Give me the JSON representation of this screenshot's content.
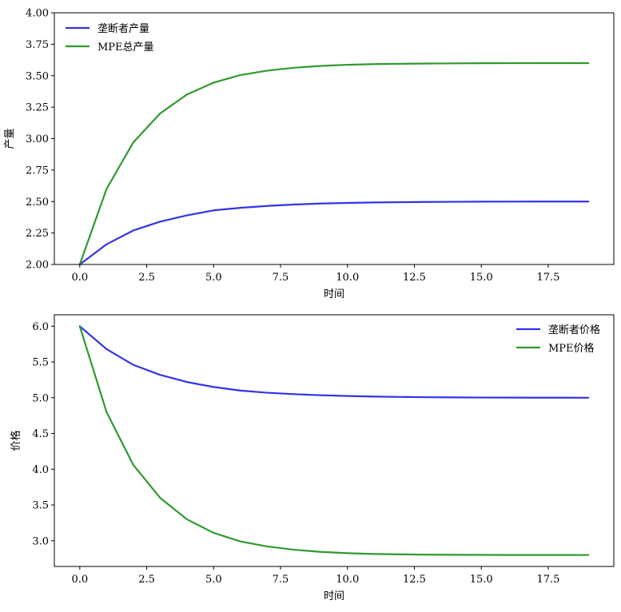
{
  "chart_data": [
    {
      "type": "line",
      "xlabel": "时间",
      "ylabel": "产量",
      "xlim": [
        -0.95,
        19.95
      ],
      "ylim": [
        2.0,
        4.0
      ],
      "xticks": [
        "0.0",
        "2.5",
        "5.0",
        "7.5",
        "10.0",
        "12.5",
        "15.0",
        "17.5"
      ],
      "yticks": [
        "2.00",
        "2.25",
        "2.50",
        "2.75",
        "3.00",
        "3.25",
        "3.50",
        "3.75",
        "4.00"
      ],
      "legend_position": "top-left",
      "x": [
        0,
        1,
        2,
        3,
        4,
        5,
        6,
        7,
        8,
        9,
        10,
        11,
        12,
        13,
        14,
        15,
        16,
        17,
        18,
        19
      ],
      "series": [
        {
          "name": "垄断者产量",
          "color": "#3333e8",
          "values": [
            2.0,
            2.16,
            2.27,
            2.34,
            2.39,
            2.43,
            2.45,
            2.465,
            2.476,
            2.484,
            2.489,
            2.493,
            2.495,
            2.497,
            2.498,
            2.499,
            2.4995,
            2.4998,
            2.4999,
            2.5
          ]
        },
        {
          "name": "MPE总产量",
          "color": "#2e9a2e",
          "values": [
            2.0,
            2.6,
            2.97,
            3.2,
            3.35,
            3.445,
            3.505,
            3.54,
            3.563,
            3.578,
            3.587,
            3.592,
            3.595,
            3.597,
            3.598,
            3.599,
            3.5995,
            3.5998,
            3.5999,
            3.6
          ]
        }
      ]
    },
    {
      "type": "line",
      "xlabel": "时间",
      "ylabel": "价格",
      "xlim": [
        -0.95,
        19.95
      ],
      "ylim": [
        2.64,
        6.16
      ],
      "xticks": [
        "0.0",
        "2.5",
        "5.0",
        "7.5",
        "10.0",
        "12.5",
        "15.0",
        "17.5"
      ],
      "yticks": [
        "3.0",
        "3.5",
        "4.0",
        "4.5",
        "5.0",
        "5.5",
        "6.0"
      ],
      "legend_position": "top-right",
      "x": [
        0,
        1,
        2,
        3,
        4,
        5,
        6,
        7,
        8,
        9,
        10,
        11,
        12,
        13,
        14,
        15,
        16,
        17,
        18,
        19
      ],
      "series": [
        {
          "name": "垄断者价格",
          "color": "#3333e8",
          "values": [
            6.0,
            5.68,
            5.46,
            5.32,
            5.22,
            5.15,
            5.1,
            5.07,
            5.05,
            5.035,
            5.024,
            5.016,
            5.011,
            5.007,
            5.005,
            5.003,
            5.002,
            5.001,
            5.0005,
            5.0
          ]
        },
        {
          "name": "MPE价格",
          "color": "#2e9a2e",
          "values": [
            6.0,
            4.8,
            4.06,
            3.6,
            3.3,
            3.11,
            2.99,
            2.92,
            2.874,
            2.844,
            2.826,
            2.815,
            2.809,
            2.805,
            2.803,
            2.802,
            2.801,
            2.8005,
            2.8002,
            2.8
          ]
        }
      ]
    }
  ]
}
